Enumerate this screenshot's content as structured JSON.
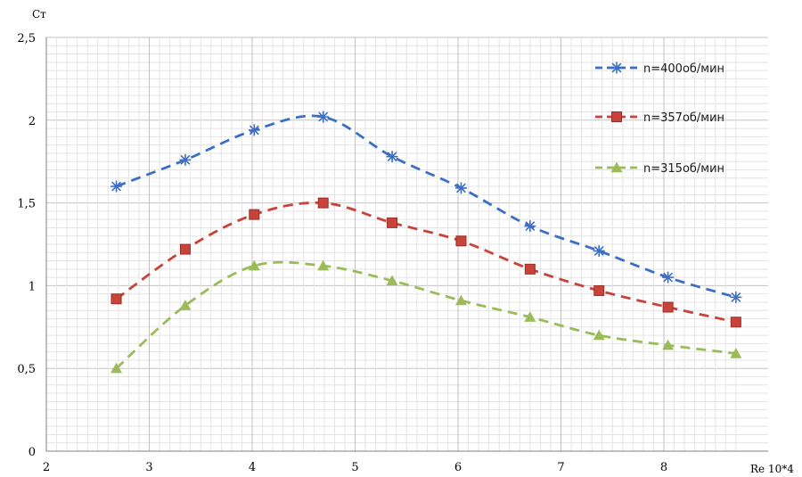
{
  "chart_data": {
    "type": "line",
    "ylabel": "Cт",
    "xlabel": "Re 10*4",
    "xlim": [
      2,
      8.7
    ],
    "ylim": [
      0,
      2.5
    ],
    "x_ticks": [
      "2",
      "3",
      "4",
      "5",
      "6",
      "7",
      "8"
    ],
    "y_ticks": [
      "0",
      "0,5",
      "1",
      "1,5",
      "2",
      "2,5"
    ],
    "grid": true,
    "legend_position": "top-right",
    "x": [
      2.68,
      3.35,
      4.02,
      4.69,
      5.36,
      6.03,
      6.7,
      7.37,
      8.04,
      8.7
    ],
    "series": [
      {
        "name": "n=400об/мин",
        "color": "#3b6fc6",
        "marker": "asterisk",
        "values": [
          1.6,
          1.76,
          1.94,
          2.02,
          1.78,
          1.59,
          1.36,
          1.21,
          1.05,
          0.93
        ]
      },
      {
        "name": "n=357об/мин",
        "color": "#c8433a",
        "marker": "square",
        "values": [
          0.92,
          1.22,
          1.43,
          1.5,
          1.38,
          1.27,
          1.1,
          0.97,
          0.87,
          0.78
        ]
      },
      {
        "name": "n=315об/мин",
        "color": "#9bbb59",
        "marker": "triangle",
        "values": [
          0.5,
          0.88,
          1.12,
          1.12,
          1.03,
          0.91,
          0.81,
          0.7,
          0.64,
          0.59
        ]
      }
    ]
  }
}
